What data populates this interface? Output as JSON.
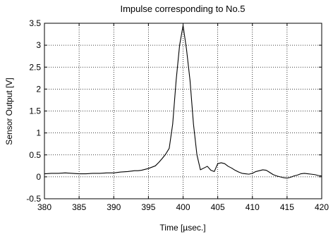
{
  "chart_data": {
    "type": "line",
    "title": "Impulse corresponding to No.5",
    "xlabel": "Time [µsec.]",
    "ylabel": "Sensor Output [V]",
    "xlim": [
      380,
      420
    ],
    "ylim": [
      -0.5,
      3.5
    ],
    "xticks": [
      380,
      385,
      390,
      395,
      400,
      405,
      410,
      415,
      420
    ],
    "yticks": [
      -0.5,
      0,
      0.5,
      1,
      1.5,
      2,
      2.5,
      3,
      3.5
    ],
    "xtick_labels": [
      "380",
      "385",
      "390",
      "395",
      "400",
      "405",
      "410",
      "415",
      "420"
    ],
    "ytick_labels": [
      "-0.5",
      "0",
      "0.5",
      "1",
      "1.5",
      "2",
      "2.5",
      "3",
      "3.5"
    ],
    "grid": true,
    "line_color": "#000000",
    "series": [
      {
        "x": [
          380,
          381,
          382,
          383,
          384,
          385,
          386,
          387,
          388,
          389,
          390,
          391,
          392,
          393,
          393.5,
          394,
          394.5,
          395,
          395.5,
          396,
          396.5,
          397,
          397.5,
          398,
          398.5,
          399,
          399.5,
          400,
          400.5,
          401,
          401.5,
          402,
          402.5,
          403,
          403.5,
          404,
          404.5,
          405,
          405.5,
          406,
          406.5,
          407,
          407.5,
          408,
          408.5,
          409,
          409.5,
          410,
          410.5,
          411,
          411.5,
          412,
          412.5,
          413,
          413.5,
          414,
          414.5,
          415,
          415.5,
          416,
          416.5,
          417,
          417.5,
          418,
          418.5,
          419,
          419.5,
          420
        ],
        "y": [
          0.07,
          0.08,
          0.08,
          0.09,
          0.08,
          0.07,
          0.07,
          0.08,
          0.08,
          0.09,
          0.09,
          0.11,
          0.12,
          0.14,
          0.14,
          0.15,
          0.17,
          0.19,
          0.22,
          0.25,
          0.33,
          0.42,
          0.52,
          0.65,
          1.2,
          2.2,
          3.0,
          3.45,
          2.9,
          2.2,
          1.2,
          0.5,
          0.16,
          0.2,
          0.24,
          0.15,
          0.12,
          0.3,
          0.32,
          0.3,
          0.24,
          0.2,
          0.15,
          0.11,
          0.08,
          0.07,
          0.06,
          0.08,
          0.12,
          0.14,
          0.16,
          0.15,
          0.1,
          0.05,
          0.02,
          0.0,
          -0.02,
          -0.03,
          -0.01,
          0.02,
          0.04,
          0.07,
          0.08,
          0.07,
          0.06,
          0.05,
          0.03,
          0.02
        ]
      }
    ]
  }
}
